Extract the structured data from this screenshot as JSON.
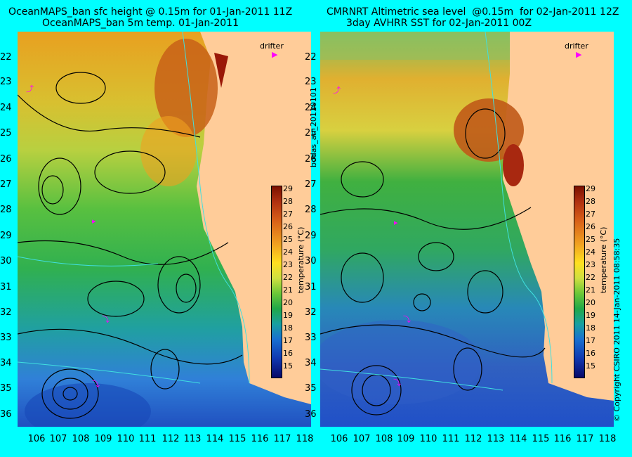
{
  "left": {
    "title_line1": "OceanMAPS_ban sfc height @ 0.15m for 01-Jan-2011 11Z",
    "title_line2": "OceanMAPS_ban 5m temp. 01-Jan-2011"
  },
  "right": {
    "title_line1": "CMRNRT Altimetric sea level  @0.15m  for 02-Jan-2011 12Z",
    "title_line2": "3day AVHRR SST for 02-Jan-2011 00Z"
  },
  "lat_labels": [
    "22",
    "23",
    "24",
    "25",
    "26",
    "27",
    "28",
    "29",
    "30",
    "31",
    "32",
    "33",
    "34",
    "35",
    "36"
  ],
  "lon_labels": [
    "106",
    "107",
    "108",
    "109",
    "110",
    "111",
    "112",
    "113",
    "114",
    "115",
    "116",
    "117",
    "118"
  ],
  "legend": {
    "drifter": "drifter",
    "drifter_icon": "drifter-icon"
  },
  "colorbar": {
    "ticks": [
      "29",
      "28",
      "27",
      "26",
      "25",
      "24",
      "23",
      "22",
      "21",
      "20",
      "19",
      "18",
      "17",
      "16",
      "15"
    ],
    "title": "temperature (°C)"
  },
  "side_label": "bodas_an_20110101",
  "copyright": "© Copyright CSIRO 2011   14-Jan-2011 08:58:35",
  "colors": {
    "background": "#00ffff",
    "land": "#ffcc99",
    "drifter": "#ff00ff",
    "contour": "#000000",
    "isobath": "#40e0e0"
  }
}
